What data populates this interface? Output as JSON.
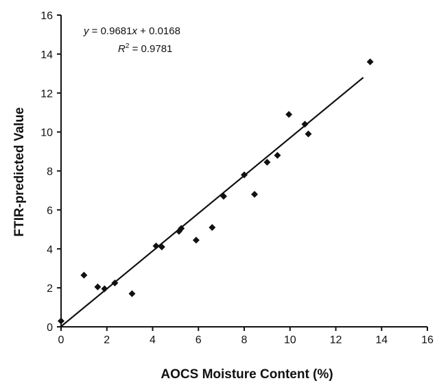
{
  "chart_data": {
    "type": "scatter",
    "xlabel": "AOCS Moisture Content  (%)",
    "ylabel": "FTIR-predicted Value",
    "xlim": [
      0,
      16
    ],
    "ylim": [
      0,
      16
    ],
    "x_ticks": [
      "0",
      "2",
      "4",
      "6",
      "8",
      "10",
      "12",
      "14",
      "16"
    ],
    "y_ticks": [
      "0",
      "2",
      "4",
      "6",
      "8",
      "10",
      "12",
      "14",
      "16"
    ],
    "grid": false,
    "series": [
      {
        "marker": "diamond",
        "color": "#111111",
        "points": [
          {
            "x": 0.0,
            "y": 0.3
          },
          {
            "x": 1.0,
            "y": 2.65
          },
          {
            "x": 1.6,
            "y": 2.05
          },
          {
            "x": 1.9,
            "y": 1.95
          },
          {
            "x": 2.35,
            "y": 2.25
          },
          {
            "x": 3.1,
            "y": 1.7
          },
          {
            "x": 4.15,
            "y": 4.15
          },
          {
            "x": 4.4,
            "y": 4.1
          },
          {
            "x": 5.15,
            "y": 4.9
          },
          {
            "x": 5.25,
            "y": 5.05
          },
          {
            "x": 5.9,
            "y": 4.45
          },
          {
            "x": 6.6,
            "y": 5.1
          },
          {
            "x": 7.1,
            "y": 6.7
          },
          {
            "x": 8.0,
            "y": 7.8
          },
          {
            "x": 8.45,
            "y": 6.8
          },
          {
            "x": 9.0,
            "y": 8.45
          },
          {
            "x": 9.45,
            "y": 8.8
          },
          {
            "x": 9.95,
            "y": 10.9
          },
          {
            "x": 10.65,
            "y": 10.4
          },
          {
            "x": 10.8,
            "y": 9.9
          },
          {
            "x": 13.5,
            "y": 13.6
          }
        ]
      }
    ],
    "trendline": {
      "slope": 0.9681,
      "intercept": 0.0168,
      "x_range": [
        0,
        13.2
      ]
    },
    "annotations": {
      "equation_prefix": "y",
      "equation_mid": " = 0.9681",
      "equation_var": "x",
      "equation_suffix": " + 0.0168",
      "r2_prefix": "R",
      "r2_sup": "2",
      "r2_suffix": " = 0.9781"
    }
  }
}
